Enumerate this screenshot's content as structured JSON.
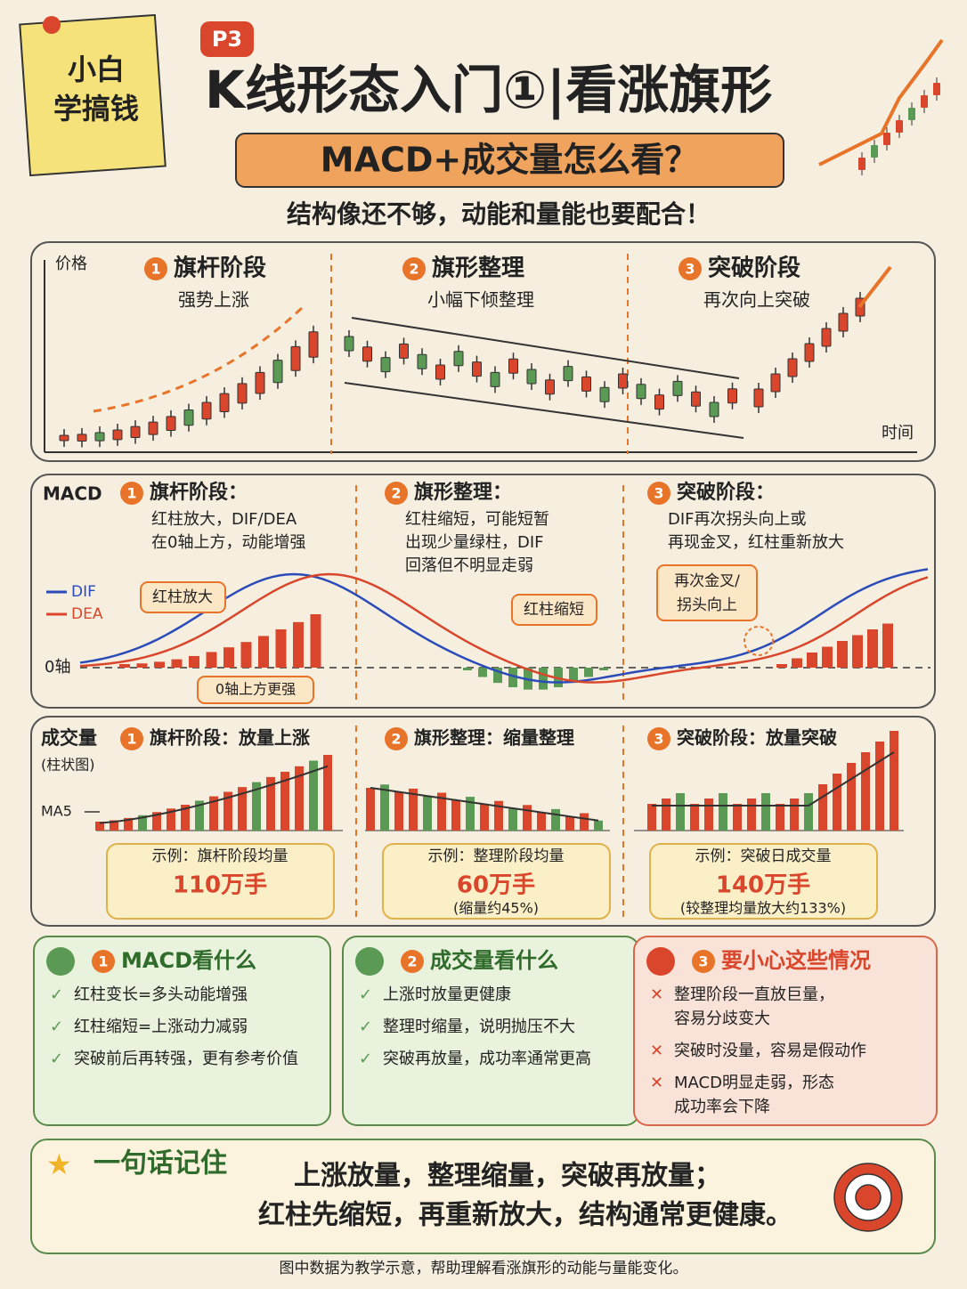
{
  "header": {
    "note": [
      "小白",
      "学搞钱"
    ],
    "badge": "P3",
    "title": "K线形态入门①|看涨旗形",
    "subtitle": "MACD+成交量怎么看？",
    "tagline": "结构像还不够，动能和量能也要配合！"
  },
  "price_panel": {
    "y_label": "价格",
    "x_label": "时间",
    "phases": [
      {
        "number": "1",
        "title": "旗杆阶段",
        "desc": "强势上涨"
      },
      {
        "number": "2",
        "title": "旗形整理",
        "desc": "小幅下倾整理"
      },
      {
        "number": "3",
        "title": "突破阶段",
        "desc": "再次向上突破"
      }
    ]
  },
  "macd_panel": {
    "title": "MACD",
    "legend": [
      "DIF",
      "DEA"
    ],
    "zero_label": "0轴",
    "phases": [
      {
        "number": "1",
        "title": "旗杆阶段：",
        "lines": [
          "红柱放大，DIF/DEA",
          "在0轴上方，动能增强"
        ]
      },
      {
        "number": "2",
        "title": "旗形整理：",
        "lines": [
          "红柱缩短，可能短暂",
          "出现少量绿柱，DIF",
          "回落但不明显走弱"
        ]
      },
      {
        "number": "3",
        "title": "突破阶段：",
        "lines": [
          "DIF再次拐头向上或",
          "再现金叉，红柱重新放大"
        ]
      }
    ],
    "callouts": {
      "expand": "红柱放大",
      "above_zero": "0轴上方更强",
      "shrink": "红柱缩短",
      "cross": [
        "再次金叉/",
        "拐头向上"
      ]
    }
  },
  "volume_panel": {
    "title": "成交量",
    "subtitle": "(柱状图)",
    "ma_label": "MA5",
    "phases": [
      {
        "number": "1",
        "title": "旗杆阶段：放量上涨",
        "example_label": "示例：旗杆阶段均量",
        "example_value": "110万手"
      },
      {
        "number": "2",
        "title": "旗形整理：缩量整理",
        "example_label": "示例：整理阶段均量",
        "example_value": "60万手",
        "example_note": "(缩量约45%)"
      },
      {
        "number": "3",
        "title": "突破阶段：放量突破",
        "example_label": "示例：突破日成交量",
        "example_value": "140万手",
        "example_note": "(较整理均量放大约133%)"
      }
    ]
  },
  "tips": [
    {
      "number": "1",
      "title": "MACD看什么",
      "items": [
        [
          "红柱变长=多头动能增强"
        ],
        [
          "红柱缩短=上涨动力减弱"
        ],
        [
          "突破前后再转强，更有参考价值"
        ]
      ]
    },
    {
      "number": "2",
      "title": "成交量看什么",
      "items": [
        [
          "上涨时放量更健康"
        ],
        [
          "整理时缩量，说明抛压不大"
        ],
        [
          "突破再放量，成功率通常更高"
        ]
      ]
    },
    {
      "number": "3",
      "title": "要小心这些情况",
      "items": [
        [
          "整理阶段一直放巨量，",
          "容易分歧变大"
        ],
        [
          "突破时没量，容易是假动作"
        ],
        [
          "MACD明显走弱，形态",
          "成功率会下降"
        ]
      ]
    }
  ],
  "summary": {
    "label": "一句话记住",
    "lines": [
      "上涨放量，整理缩量，突破再放量；",
      "红柱先缩短，再重新放大，结构通常更健康。"
    ]
  },
  "footnote": "图中数据为教学示意，帮助理解看涨旗形的动能与量能变化。"
}
